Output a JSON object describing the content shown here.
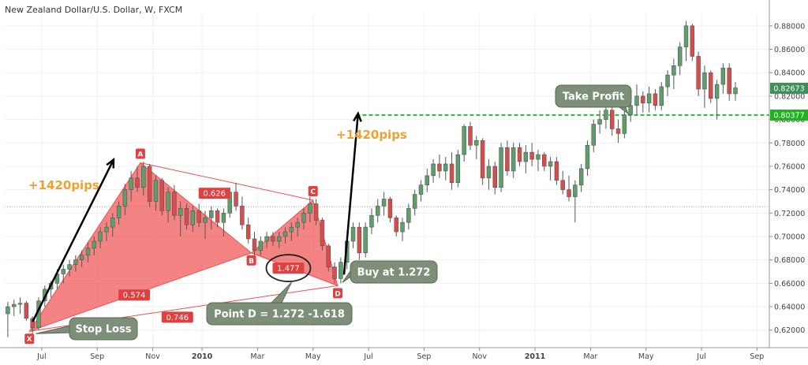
{
  "header": {
    "title": "New Zealand Dollar/U.S. Dollar, W, FXCM"
  },
  "colors": {
    "up": "#5d9e6b",
    "down": "#d94c4c",
    "pattern": "#f05050",
    "callout": "#7d8f78",
    "target": "#22cc22",
    "pips": "#f0a030"
  },
  "chart_data": {
    "type": "candlestick",
    "title": "New Zealand Dollar/U.S. Dollar, W, FXCM",
    "ylim": [
      0.605,
      0.89
    ],
    "y_ticks": [
      "0.88000",
      "0.86000",
      "0.84000",
      "0.82000",
      "0.80000",
      "0.78000",
      "0.76000",
      "0.74000",
      "0.72000",
      "0.70000",
      "0.68000",
      "0.66000",
      "0.64000",
      "0.62000"
    ],
    "y_tick_values": [
      0.88,
      0.86,
      0.84,
      0.82,
      0.8,
      0.78,
      0.76,
      0.74,
      0.72,
      0.7,
      0.68,
      0.66,
      0.64,
      0.62
    ],
    "x_ticks": [
      {
        "label": "Jul",
        "week": 6,
        "bold": false
      },
      {
        "label": "Sep",
        "week": 15,
        "bold": false
      },
      {
        "label": "Nov",
        "week": 24,
        "bold": false
      },
      {
        "label": "2010",
        "week": 32,
        "bold": true
      },
      {
        "label": "Mar",
        "week": 41,
        "bold": false
      },
      {
        "label": "May",
        "week": 50,
        "bold": false
      },
      {
        "label": "Jul",
        "week": 59,
        "bold": false
      },
      {
        "label": "Sep",
        "week": 68,
        "bold": false
      },
      {
        "label": "Nov",
        "week": 77,
        "bold": false
      },
      {
        "label": "2011",
        "week": 86,
        "bold": true
      },
      {
        "label": "Mar",
        "week": 95,
        "bold": false
      },
      {
        "label": "May",
        "week": 104,
        "bold": false
      },
      {
        "label": "Jul",
        "week": 113,
        "bold": false
      },
      {
        "label": "Sep",
        "week": 122,
        "bold": false
      }
    ],
    "x_range": [
      0,
      124
    ],
    "candles": [
      [
        0.634,
        0.644,
        0.614,
        0.64
      ],
      [
        0.64,
        0.646,
        0.632,
        0.642
      ],
      [
        0.642,
        0.648,
        0.634,
        0.643
      ],
      [
        0.643,
        0.645,
        0.628,
        0.63
      ],
      [
        0.63,
        0.632,
        0.616,
        0.622
      ],
      [
        0.622,
        0.648,
        0.62,
        0.645
      ],
      [
        0.645,
        0.658,
        0.64,
        0.655
      ],
      [
        0.655,
        0.662,
        0.648,
        0.66
      ],
      [
        0.66,
        0.672,
        0.655,
        0.668
      ],
      [
        0.668,
        0.676,
        0.66,
        0.672
      ],
      [
        0.672,
        0.68,
        0.666,
        0.676
      ],
      [
        0.676,
        0.684,
        0.67,
        0.68
      ],
      [
        0.68,
        0.688,
        0.674,
        0.684
      ],
      [
        0.684,
        0.695,
        0.678,
        0.69
      ],
      [
        0.69,
        0.7,
        0.684,
        0.696
      ],
      [
        0.696,
        0.708,
        0.69,
        0.704
      ],
      [
        0.704,
        0.712,
        0.696,
        0.708
      ],
      [
        0.708,
        0.72,
        0.7,
        0.716
      ],
      [
        0.716,
        0.73,
        0.71,
        0.726
      ],
      [
        0.726,
        0.745,
        0.718,
        0.74
      ],
      [
        0.74,
        0.756,
        0.73,
        0.75
      ],
      [
        0.75,
        0.76,
        0.738,
        0.742
      ],
      [
        0.742,
        0.764,
        0.735,
        0.76
      ],
      [
        0.76,
        0.762,
        0.725,
        0.73
      ],
      [
        0.73,
        0.752,
        0.722,
        0.748
      ],
      [
        0.748,
        0.75,
        0.718,
        0.722
      ],
      [
        0.722,
        0.742,
        0.712,
        0.738
      ],
      [
        0.738,
        0.744,
        0.714,
        0.718
      ],
      [
        0.718,
        0.73,
        0.7,
        0.724
      ],
      [
        0.724,
        0.728,
        0.706,
        0.71
      ],
      [
        0.71,
        0.726,
        0.704,
        0.722
      ],
      [
        0.722,
        0.728,
        0.708,
        0.712
      ],
      [
        0.712,
        0.722,
        0.698,
        0.716
      ],
      [
        0.716,
        0.726,
        0.706,
        0.722
      ],
      [
        0.722,
        0.724,
        0.708,
        0.712
      ],
      [
        0.712,
        0.724,
        0.7,
        0.72
      ],
      [
        0.72,
        0.742,
        0.716,
        0.738
      ],
      [
        0.738,
        0.746,
        0.722,
        0.726
      ],
      [
        0.726,
        0.734,
        0.706,
        0.71
      ],
      [
        0.71,
        0.716,
        0.694,
        0.698
      ],
      [
        0.698,
        0.704,
        0.684,
        0.688
      ],
      [
        0.688,
        0.7,
        0.684,
        0.696
      ],
      [
        0.696,
        0.704,
        0.69,
        0.7
      ],
      [
        0.7,
        0.704,
        0.692,
        0.696
      ],
      [
        0.696,
        0.704,
        0.69,
        0.7
      ],
      [
        0.7,
        0.708,
        0.694,
        0.704
      ],
      [
        0.704,
        0.712,
        0.696,
        0.708
      ],
      [
        0.708,
        0.716,
        0.7,
        0.712
      ],
      [
        0.712,
        0.724,
        0.706,
        0.72
      ],
      [
        0.72,
        0.734,
        0.712,
        0.728
      ],
      [
        0.728,
        0.732,
        0.71,
        0.714
      ],
      [
        0.714,
        0.716,
        0.688,
        0.692
      ],
      [
        0.692,
        0.694,
        0.67,
        0.674
      ],
      [
        0.674,
        0.678,
        0.66,
        0.664
      ],
      [
        0.664,
        0.682,
        0.66,
        0.678
      ],
      [
        0.678,
        0.7,
        0.672,
        0.696
      ],
      [
        0.696,
        0.712,
        0.69,
        0.708
      ],
      [
        0.708,
        0.712,
        0.68,
        0.686
      ],
      [
        0.686,
        0.712,
        0.682,
        0.708
      ],
      [
        0.708,
        0.724,
        0.702,
        0.718
      ],
      [
        0.718,
        0.732,
        0.712,
        0.726
      ],
      [
        0.726,
        0.738,
        0.718,
        0.732
      ],
      [
        0.732,
        0.734,
        0.712,
        0.716
      ],
      [
        0.716,
        0.718,
        0.7,
        0.704
      ],
      [
        0.704,
        0.716,
        0.696,
        0.712
      ],
      [
        0.712,
        0.728,
        0.706,
        0.724
      ],
      [
        0.724,
        0.74,
        0.718,
        0.736
      ],
      [
        0.736,
        0.748,
        0.73,
        0.744
      ],
      [
        0.744,
        0.758,
        0.738,
        0.752
      ],
      [
        0.752,
        0.766,
        0.746,
        0.762
      ],
      [
        0.762,
        0.77,
        0.75,
        0.756
      ],
      [
        0.756,
        0.768,
        0.748,
        0.762
      ],
      [
        0.762,
        0.772,
        0.74,
        0.746
      ],
      [
        0.746,
        0.774,
        0.742,
        0.77
      ],
      [
        0.77,
        0.796,
        0.764,
        0.794
      ],
      [
        0.794,
        0.798,
        0.774,
        0.778
      ],
      [
        0.778,
        0.786,
        0.766,
        0.782
      ],
      [
        0.782,
        0.784,
        0.744,
        0.75
      ],
      [
        0.75,
        0.766,
        0.74,
        0.76
      ],
      [
        0.76,
        0.764,
        0.736,
        0.742
      ],
      [
        0.742,
        0.78,
        0.738,
        0.776
      ],
      [
        0.776,
        0.782,
        0.752,
        0.756
      ],
      [
        0.756,
        0.78,
        0.75,
        0.776
      ],
      [
        0.776,
        0.78,
        0.76,
        0.764
      ],
      [
        0.764,
        0.778,
        0.754,
        0.772
      ],
      [
        0.772,
        0.78,
        0.76,
        0.766
      ],
      [
        0.766,
        0.774,
        0.756,
        0.77
      ],
      [
        0.77,
        0.772,
        0.756,
        0.76
      ],
      [
        0.76,
        0.768,
        0.748,
        0.764
      ],
      [
        0.764,
        0.768,
        0.744,
        0.748
      ],
      [
        0.748,
        0.756,
        0.736,
        0.74
      ],
      [
        0.74,
        0.752,
        0.73,
        0.734
      ],
      [
        0.734,
        0.748,
        0.712,
        0.744
      ],
      [
        0.744,
        0.762,
        0.738,
        0.758
      ],
      [
        0.758,
        0.782,
        0.752,
        0.778
      ],
      [
        0.778,
        0.8,
        0.772,
        0.796
      ],
      [
        0.796,
        0.808,
        0.788,
        0.8
      ],
      [
        0.8,
        0.812,
        0.792,
        0.808
      ],
      [
        0.808,
        0.812,
        0.786,
        0.792
      ],
      [
        0.792,
        0.8,
        0.78,
        0.788
      ],
      [
        0.788,
        0.808,
        0.784,
        0.804
      ],
      [
        0.804,
        0.818,
        0.798,
        0.812
      ],
      [
        0.812,
        0.83,
        0.804,
        0.82
      ],
      [
        0.82,
        0.824,
        0.806,
        0.814
      ],
      [
        0.814,
        0.828,
        0.806,
        0.822
      ],
      [
        0.822,
        0.826,
        0.808,
        0.812
      ],
      [
        0.812,
        0.832,
        0.808,
        0.828
      ],
      [
        0.828,
        0.842,
        0.82,
        0.838
      ],
      [
        0.838,
        0.852,
        0.826,
        0.846
      ],
      [
        0.846,
        0.866,
        0.838,
        0.862
      ],
      [
        0.862,
        0.884,
        0.85,
        0.88
      ],
      [
        0.88,
        0.882,
        0.85,
        0.854
      ],
      [
        0.854,
        0.858,
        0.82,
        0.826
      ],
      [
        0.826,
        0.846,
        0.81,
        0.84
      ],
      [
        0.84,
        0.842,
        0.814,
        0.818
      ],
      [
        0.818,
        0.834,
        0.8,
        0.83
      ],
      [
        0.83,
        0.848,
        0.822,
        0.844
      ],
      [
        0.844,
        0.848,
        0.816,
        0.822
      ],
      [
        0.822,
        0.832,
        0.816,
        0.827
      ]
    ],
    "pattern": {
      "X": {
        "label": "X",
        "week": 4,
        "price": 0.619
      },
      "A": {
        "label": "A",
        "week": 22,
        "price": 0.763
      },
      "B": {
        "label": "B",
        "week": 40,
        "price": 0.686
      },
      "C": {
        "label": "C",
        "week": 50,
        "price": 0.731
      },
      "D": {
        "label": "D",
        "week": 54,
        "price": 0.658
      }
    },
    "ratios": [
      {
        "label": "0.626",
        "week": 34,
        "price": 0.737
      },
      {
        "label": "0.574",
        "week": 21,
        "price": 0.65
      },
      {
        "label": "0.746",
        "week": 28,
        "price": 0.631
      },
      {
        "label": "1.477",
        "week": 46,
        "price": 0.673
      }
    ],
    "levels": {
      "current_price_label": "0.82673",
      "current_price": 0.8267,
      "take_profit_label": "0.80377",
      "take_profit_price": 0.80377,
      "dotted_price": 0.7255
    },
    "annotations": {
      "pips_left": "+1420pips",
      "pips_right": "+1420pips",
      "stop_loss": "Stop Loss",
      "buy": "Buy at 1.272",
      "point_d": "Point D = 1.272 -1.618",
      "take_profit": "Take Profit"
    }
  }
}
